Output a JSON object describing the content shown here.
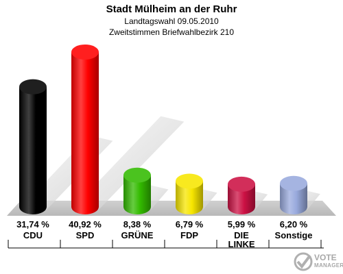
{
  "chart_data": {
    "type": "bar",
    "title": "Stadt Mülheim an der Ruhr",
    "subtitle1": "Landtagswahl 09.05.2010",
    "subtitle2": "Zweitstimmen Briefwahlbezirk 210",
    "categories": [
      "CDU",
      "SPD",
      "GRÜNE",
      "FDP",
      "DIE LINKE",
      "Sonstige"
    ],
    "category_lines": [
      [
        "CDU"
      ],
      [
        "SPD"
      ],
      [
        "GRÜNE"
      ],
      [
        "FDP"
      ],
      [
        "DIE",
        "LINKE"
      ],
      [
        "Sonstige"
      ]
    ],
    "values": [
      31.74,
      40.92,
      8.38,
      6.79,
      5.99,
      6.2
    ],
    "value_labels": [
      "31,74 %",
      "40,92 %",
      "8,38 %",
      "6,79 %",
      "5,99 %",
      "6,20 %"
    ],
    "colors": [
      "#000000",
      "#ff0000",
      "#33bb00",
      "#f7e600",
      "#cc1144",
      "#99aadd"
    ],
    "ylim": [
      0,
      42
    ],
    "grid": false,
    "legend": "none"
  },
  "watermark": {
    "line1": "VOTE",
    "line2": "MANAGER"
  }
}
